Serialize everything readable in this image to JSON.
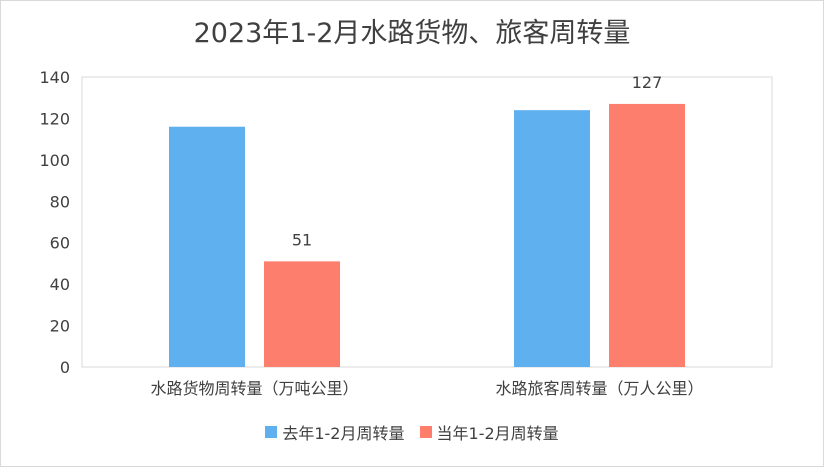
{
  "chart_data": {
    "type": "bar",
    "title": "2023年1-2月水路货物、旅客周转量",
    "categories": [
      "水路货物周转量（万吨公里）",
      "水路旅客周转量（万人公里）"
    ],
    "series": [
      {
        "name": "去年1-2月周转量",
        "values": [
          116,
          124
        ],
        "color": "#5fb0ef",
        "labels": [
          "",
          ""
        ]
      },
      {
        "name": "当年1-2月周转量",
        "values": [
          51,
          127
        ],
        "color": "#fe7e6e",
        "labels": [
          "51",
          "127"
        ]
      }
    ],
    "ylim": [
      0,
      140
    ],
    "yticks": [
      "0",
      "20",
      "40",
      "60",
      "80",
      "100",
      "120",
      "140"
    ],
    "grid": false,
    "legend_position": "bottom"
  }
}
